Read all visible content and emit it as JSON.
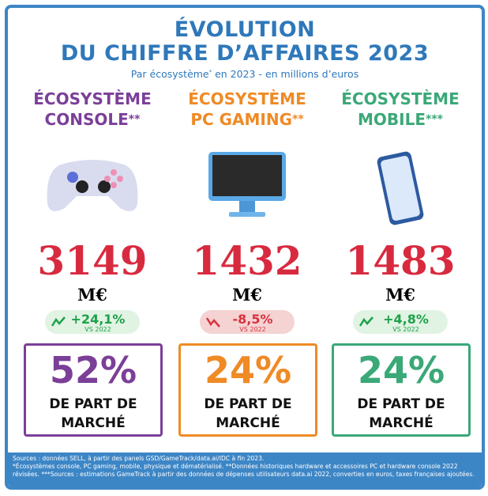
{
  "header": {
    "title_line1": "ÉVOLUTION",
    "title_line2": "DU CHIFFRE D’AFFAIRES 2023",
    "subtitle_start": "Par écosystème",
    "subtitle_mark": "*",
    "subtitle_end": " en 2023 - en millions d’euros"
  },
  "columns": [
    {
      "name1": "ÉCOSYSTÈME",
      "name2": "CONSOLE",
      "stars": "**",
      "value": "3149",
      "unit": "M€",
      "change": "+24,1%",
      "vs": "VS 2022",
      "share": "52%",
      "share_label1": "DE PART DE",
      "share_label2": "MARCHÉ"
    },
    {
      "name1": "ÉCOSYSTÈME",
      "name2": "PC GAMING",
      "stars": "**",
      "value": "1432",
      "unit": "M€",
      "change": "-8,5%",
      "vs": "VS 2022",
      "share": "24%",
      "share_label1": "DE PART DE",
      "share_label2": "MARCHÉ"
    },
    {
      "name1": "ÉCOSYSTÈME",
      "name2": "MOBILE",
      "stars": "***",
      "value": "1483",
      "unit": "M€",
      "change": "+4,8%",
      "vs": "VS 2022",
      "share": "24%",
      "share_label1": "DE PART DE",
      "share_label2": "MARCHÉ"
    }
  ],
  "footer": [
    "Sources : données SELL, à partir des panels GSD/GameTrack/data.ai/IDC à fin 2023.",
    "*Écosystèmes console, PC gaming, mobile, physique et dématérialisé. **Données historiques hardware et accessoires PC et hardware console 2022 révisées. ***Sources : estimations GameTrack à partir des données de dépenses utilisateurs data.ai 2022, converties en euros, taxes françaises ajoutées."
  ]
}
